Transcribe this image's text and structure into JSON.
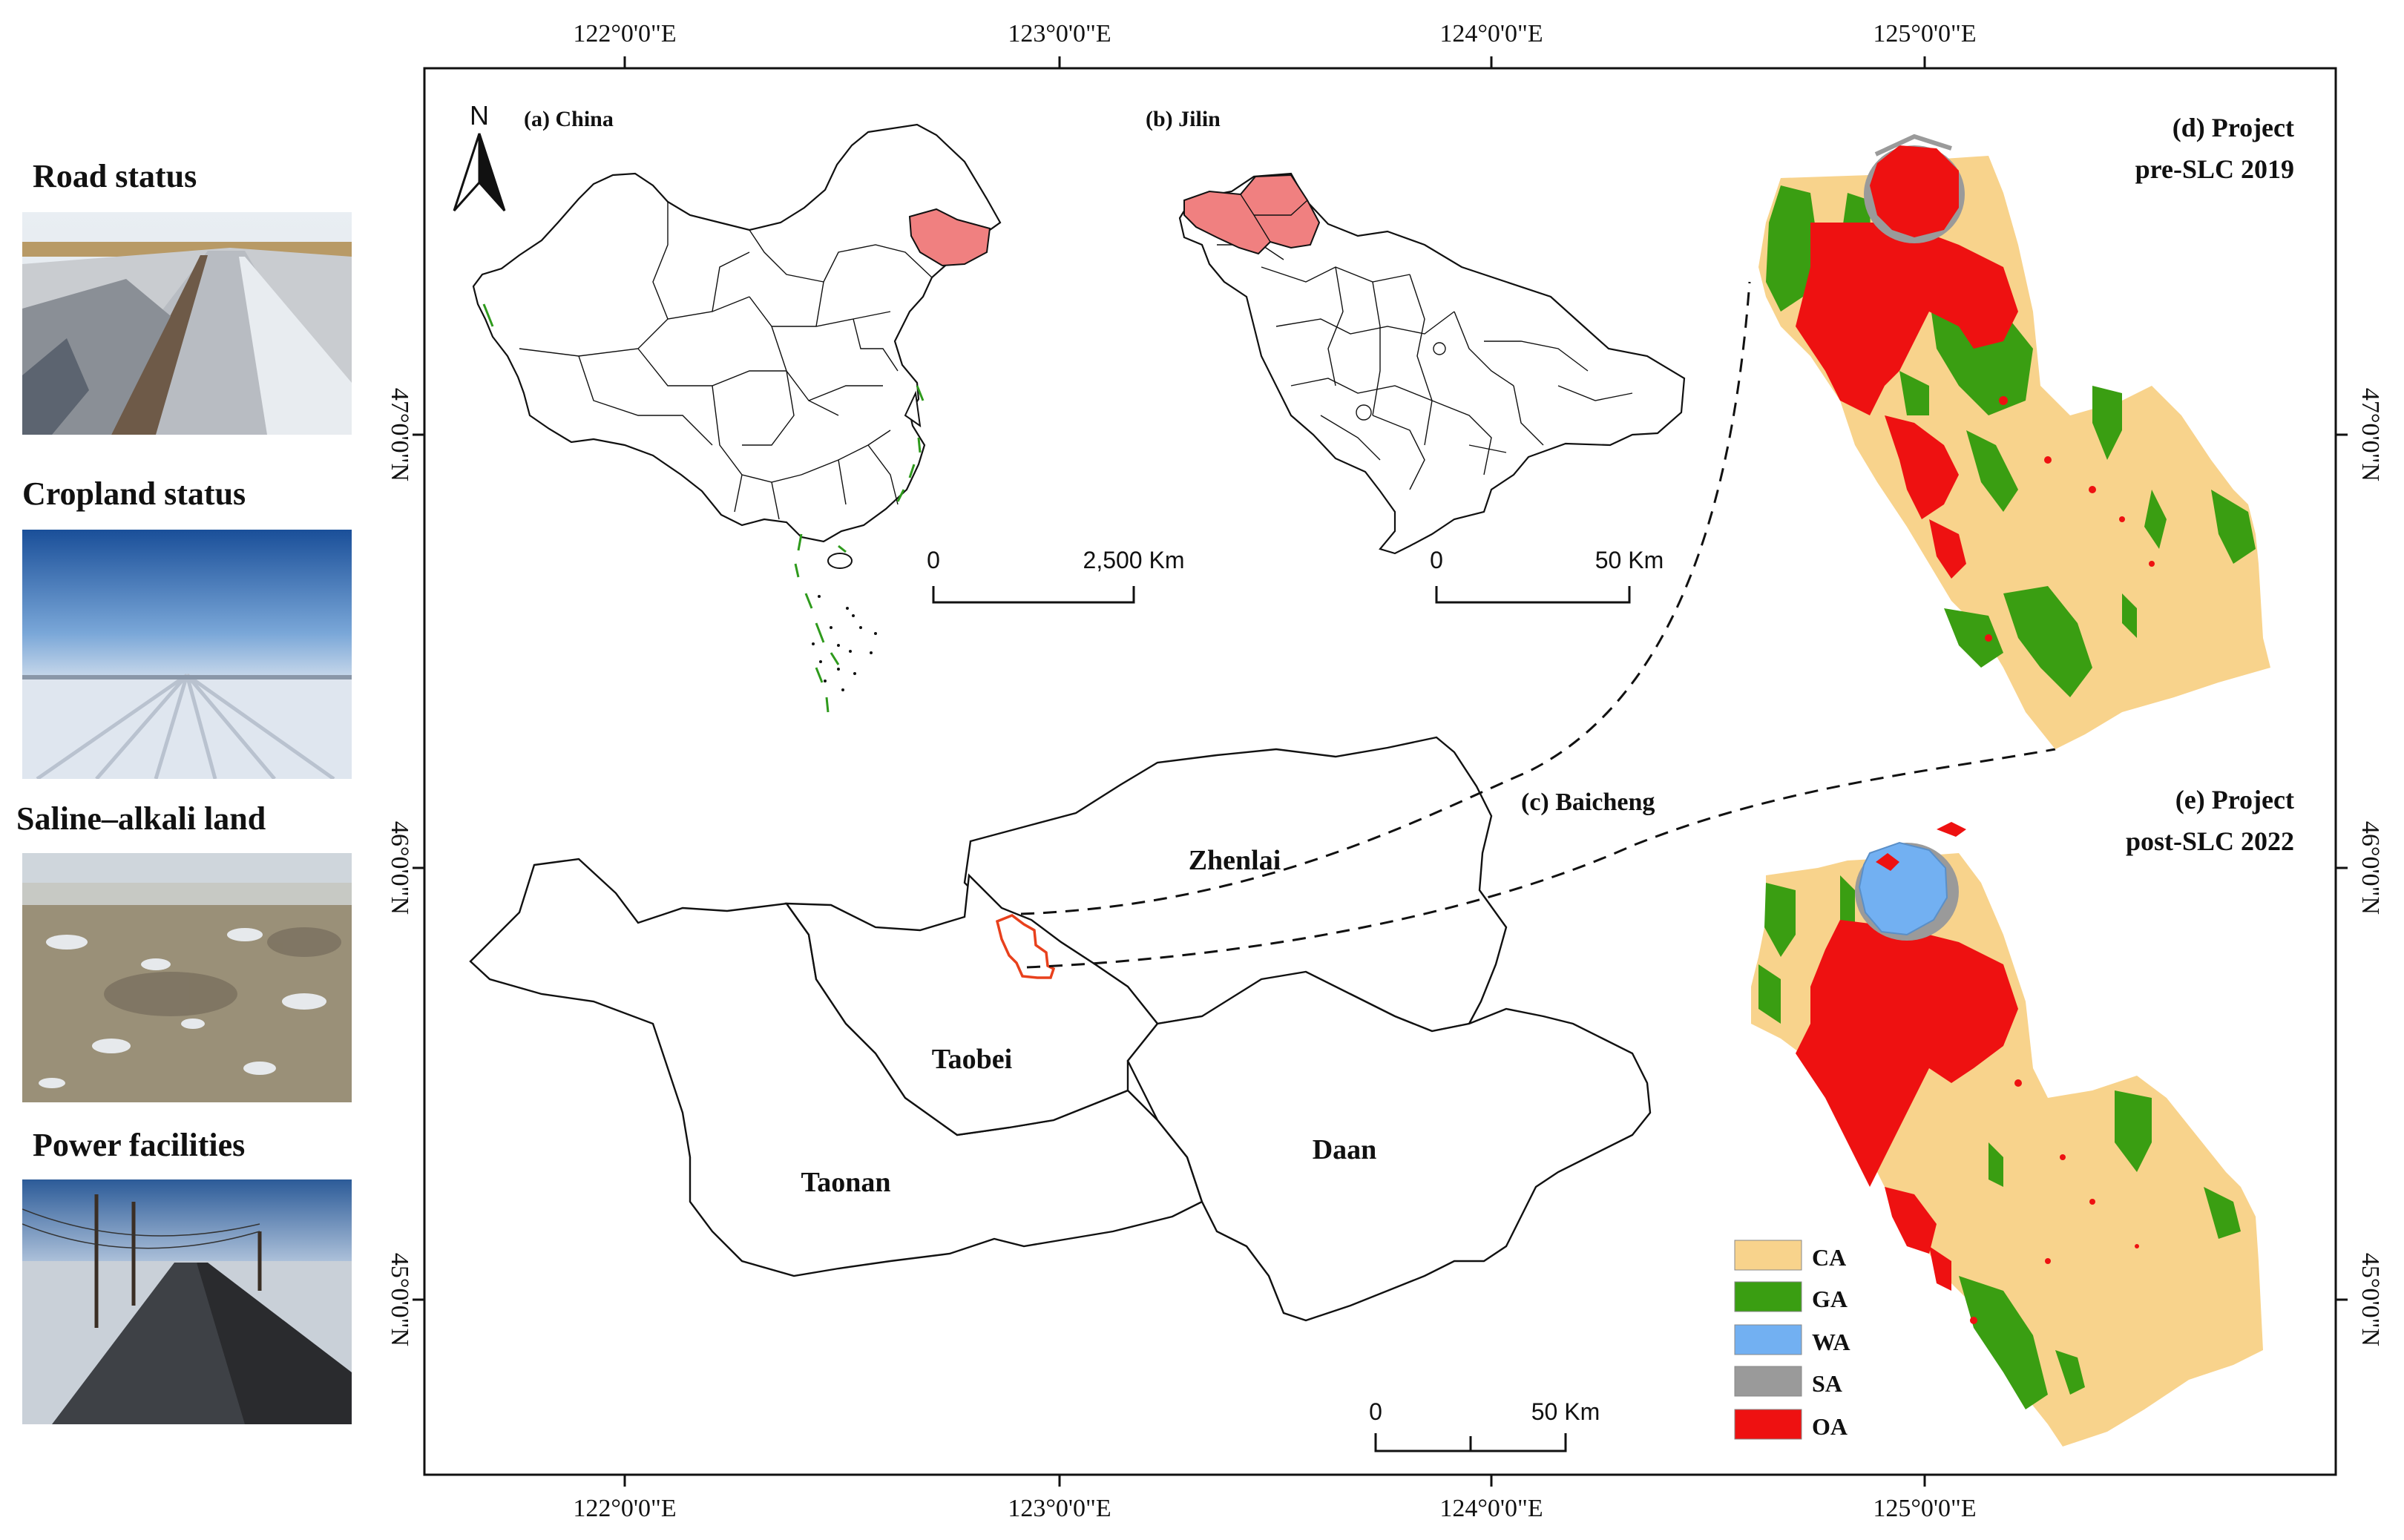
{
  "photos": [
    {
      "title": "Road status",
      "icon": "road-photo"
    },
    {
      "title": "Cropland status",
      "icon": "cropland-photo"
    },
    {
      "title": "Saline–alkali land",
      "icon": "saline-land-photo"
    },
    {
      "title": "Power facilities",
      "icon": "power-line-photo"
    }
  ],
  "axes": {
    "top_ticks": [
      "122°0'0\"E",
      "123°0'0\"E",
      "124°0'0\"E",
      "125°0'0\"E"
    ],
    "bottom_ticks": [
      "122°0'0\"E",
      "123°0'0\"E",
      "124°0'0\"E",
      "125°0'0\"E"
    ],
    "left_ticks": [
      "47°0'0\"N",
      "46°0'0\"N",
      "45°0'0\"N"
    ],
    "right_ticks": [
      "47°0'0\"N",
      "46°0'0\"N",
      "45°0'0\"N"
    ]
  },
  "north_arrow": "N",
  "panels": {
    "china": {
      "label": "(a) China",
      "scale_zero": "0",
      "scale_end": "2,500 Km"
    },
    "jilin": {
      "label": "(b) Jilin",
      "scale_zero": "0",
      "scale_end": "50 Km"
    },
    "baicheng": {
      "label": "(c) Baicheng",
      "scale_zero": "0",
      "scale_end": "50 Km",
      "counties": [
        "Zhenlai",
        "Taobei",
        "Taonan",
        "Daan"
      ]
    },
    "pre": {
      "title_line1": "(d) Project",
      "title_line2": "pre-SLC 2019"
    },
    "post": {
      "title_line1": "(e) Project",
      "title_line2": "post-SLC 2022"
    }
  },
  "legend": [
    {
      "code": "CA",
      "color": "#F8D38C"
    },
    {
      "code": "GA",
      "color": "#3A9E12"
    },
    {
      "code": "WA",
      "color": "#72B0F2"
    },
    {
      "code": "SA",
      "color": "#9A9A9A"
    },
    {
      "code": "OA",
      "color": "#EE1111"
    }
  ],
  "colors": {
    "highlight": "#F08080",
    "site_outline": "#E8401C",
    "coast_green": "#2E9A1C"
  }
}
